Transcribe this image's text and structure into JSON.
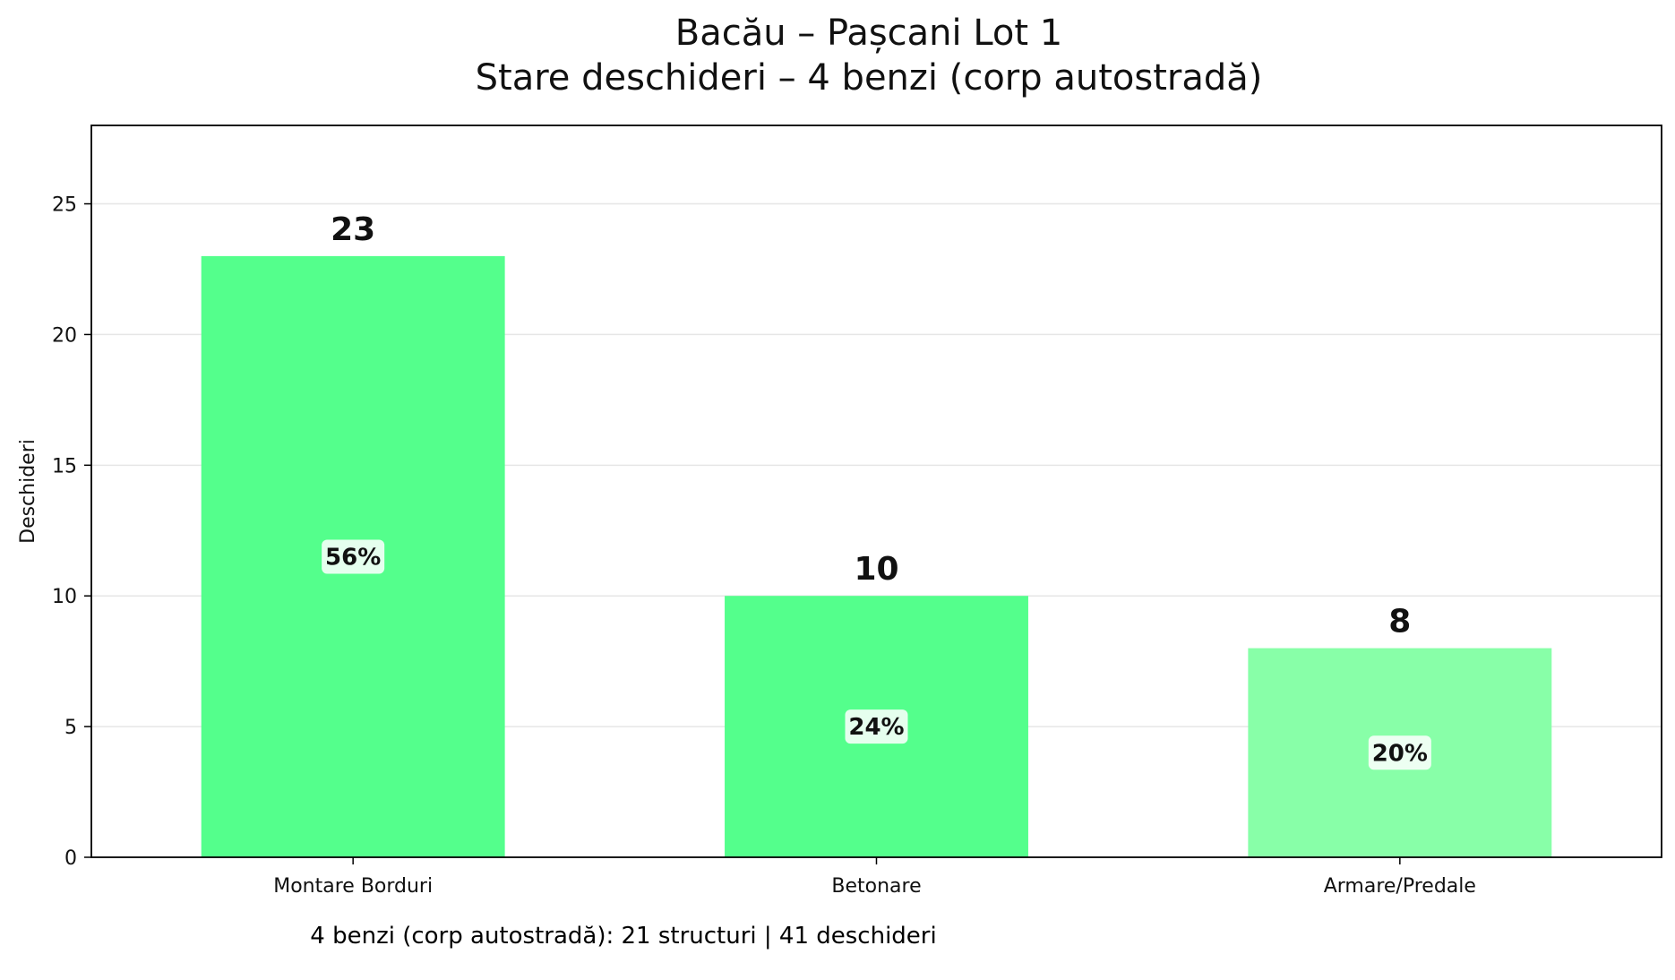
{
  "chart_data": {
    "type": "bar",
    "title": "Bacău – Pașcani Lot 1",
    "subtitle": "Stare deschideri – 4 benzi (corp autostradă)",
    "xlabel": "",
    "ylabel": "Deschideri",
    "ylim": [
      0,
      28
    ],
    "yticks": [
      0,
      5,
      10,
      15,
      20,
      25
    ],
    "grid": true,
    "categories": [
      "Montare Borduri",
      "Betonare",
      "Armare/Predale"
    ],
    "values": [
      23,
      10,
      8
    ],
    "value_labels": [
      "23",
      "10",
      "8"
    ],
    "percent_labels": [
      "56%",
      "24%",
      "20%"
    ],
    "colors": [
      "#54ff8c",
      "#54ff8c",
      "#88ffa8"
    ]
  },
  "footer": "4 benzi (corp autostradă): 21 structuri | 41 deschideri"
}
